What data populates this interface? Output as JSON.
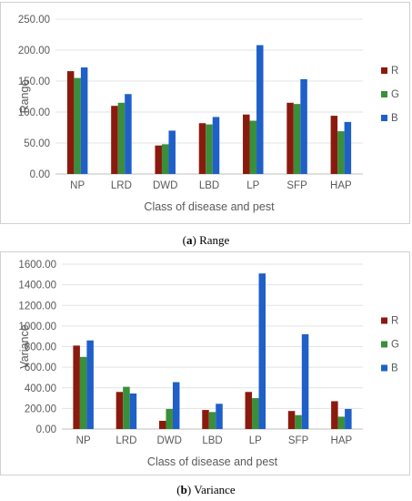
{
  "chart_data": [
    {
      "type": "bar",
      "caption_letter": "a",
      "caption_text": "Range",
      "xlabel": "Class of disease and pest",
      "ylabel": "Range",
      "ylim": [
        0,
        250
      ],
      "yticks": [
        "0.00",
        "50.00",
        "100.00",
        "150.00",
        "200.00",
        "250.00"
      ],
      "ytick_values": [
        0,
        50,
        100,
        150,
        200,
        250
      ],
      "grid": true,
      "legend_position": "right",
      "categories": [
        "NP",
        "LRD",
        "DWD",
        "LBD",
        "LP",
        "SFP",
        "HAP"
      ],
      "series": [
        {
          "name": "R",
          "color": "#8B1A0E",
          "values": [
            166,
            110,
            46,
            82,
            96,
            115,
            94
          ]
        },
        {
          "name": "G",
          "color": "#3A8F3A",
          "values": [
            155,
            115,
            48,
            80,
            86,
            113,
            69
          ]
        },
        {
          "name": "B",
          "color": "#1F5FC8",
          "values": [
            172,
            129,
            70,
            92,
            208,
            153,
            84
          ]
        }
      ]
    },
    {
      "type": "bar",
      "caption_letter": "b",
      "caption_text": "Variance",
      "xlabel": "Class of disease and pest",
      "ylabel": "Variance",
      "ylim": [
        0,
        1600
      ],
      "yticks": [
        "0.00",
        "200.00",
        "400.00",
        "600.00",
        "800.00",
        "1000.00",
        "1200.00",
        "1400.00",
        "1600.00"
      ],
      "ytick_values": [
        0,
        200,
        400,
        600,
        800,
        1000,
        1200,
        1400,
        1600
      ],
      "grid": true,
      "legend_position": "right",
      "categories": [
        "NP",
        "LRD",
        "DWD",
        "LBD",
        "LP",
        "SFP",
        "HAP"
      ],
      "series": [
        {
          "name": "R",
          "color": "#8B1A0E",
          "values": [
            810,
            360,
            80,
            185,
            360,
            175,
            270
          ]
        },
        {
          "name": "G",
          "color": "#3A8F3A",
          "values": [
            700,
            410,
            195,
            165,
            300,
            135,
            120
          ]
        },
        {
          "name": "B",
          "color": "#1F5FC8",
          "values": [
            860,
            345,
            455,
            245,
            1510,
            920,
            195
          ]
        }
      ]
    }
  ]
}
